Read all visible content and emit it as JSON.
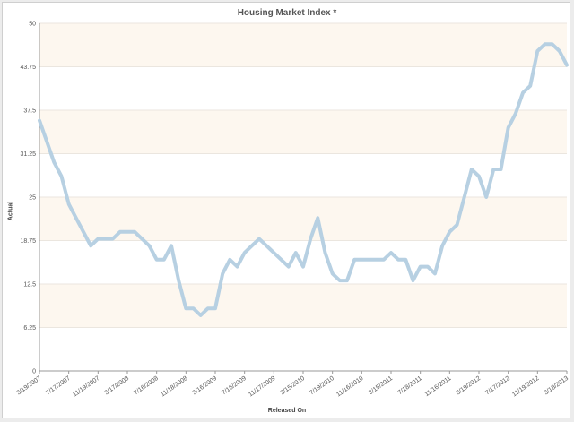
{
  "chart_data": {
    "type": "line",
    "title": "Housing Market Index *",
    "xlabel": "Released On",
    "ylabel": "Actual",
    "ylim": [
      0,
      50
    ],
    "y_ticks": [
      "0",
      "6.25",
      "12.5",
      "18.75",
      "25",
      "31.25",
      "37.5",
      "43.75",
      "50"
    ],
    "x_tick_labels": [
      "3/19/2007",
      "7/17/2007",
      "11/19/2007",
      "3/17/2008",
      "7/16/2008",
      "11/18/2008",
      "3/16/2009",
      "7/16/2009",
      "11/17/2009",
      "3/15/2010",
      "7/19/2010",
      "11/16/2010",
      "3/15/2011",
      "7/18/2011",
      "11/16/2011",
      "3/19/2012",
      "7/17/2012",
      "11/19/2012",
      "3/18/2013"
    ],
    "grid": "horizontal bands",
    "band_colors": [
      "#fdf7ef",
      "#ffffff"
    ],
    "line_color": "#b7d0e2",
    "series": [
      {
        "values": [
          36,
          33,
          30,
          28,
          24,
          22,
          20,
          18,
          19,
          19,
          19,
          20,
          20,
          20,
          19,
          18,
          16,
          16,
          18,
          13,
          9,
          9,
          8,
          9,
          9,
          14,
          16,
          15,
          17,
          18,
          19,
          18,
          17,
          16,
          15,
          17,
          15,
          19,
          22,
          17,
          14,
          13,
          13,
          16,
          16,
          16,
          16,
          16,
          17,
          16,
          16,
          13,
          15,
          15,
          14,
          18,
          20,
          21,
          25,
          29,
          28,
          25,
          29,
          29,
          35,
          37,
          40,
          41,
          46,
          47,
          47,
          46,
          44
        ]
      }
    ]
  }
}
